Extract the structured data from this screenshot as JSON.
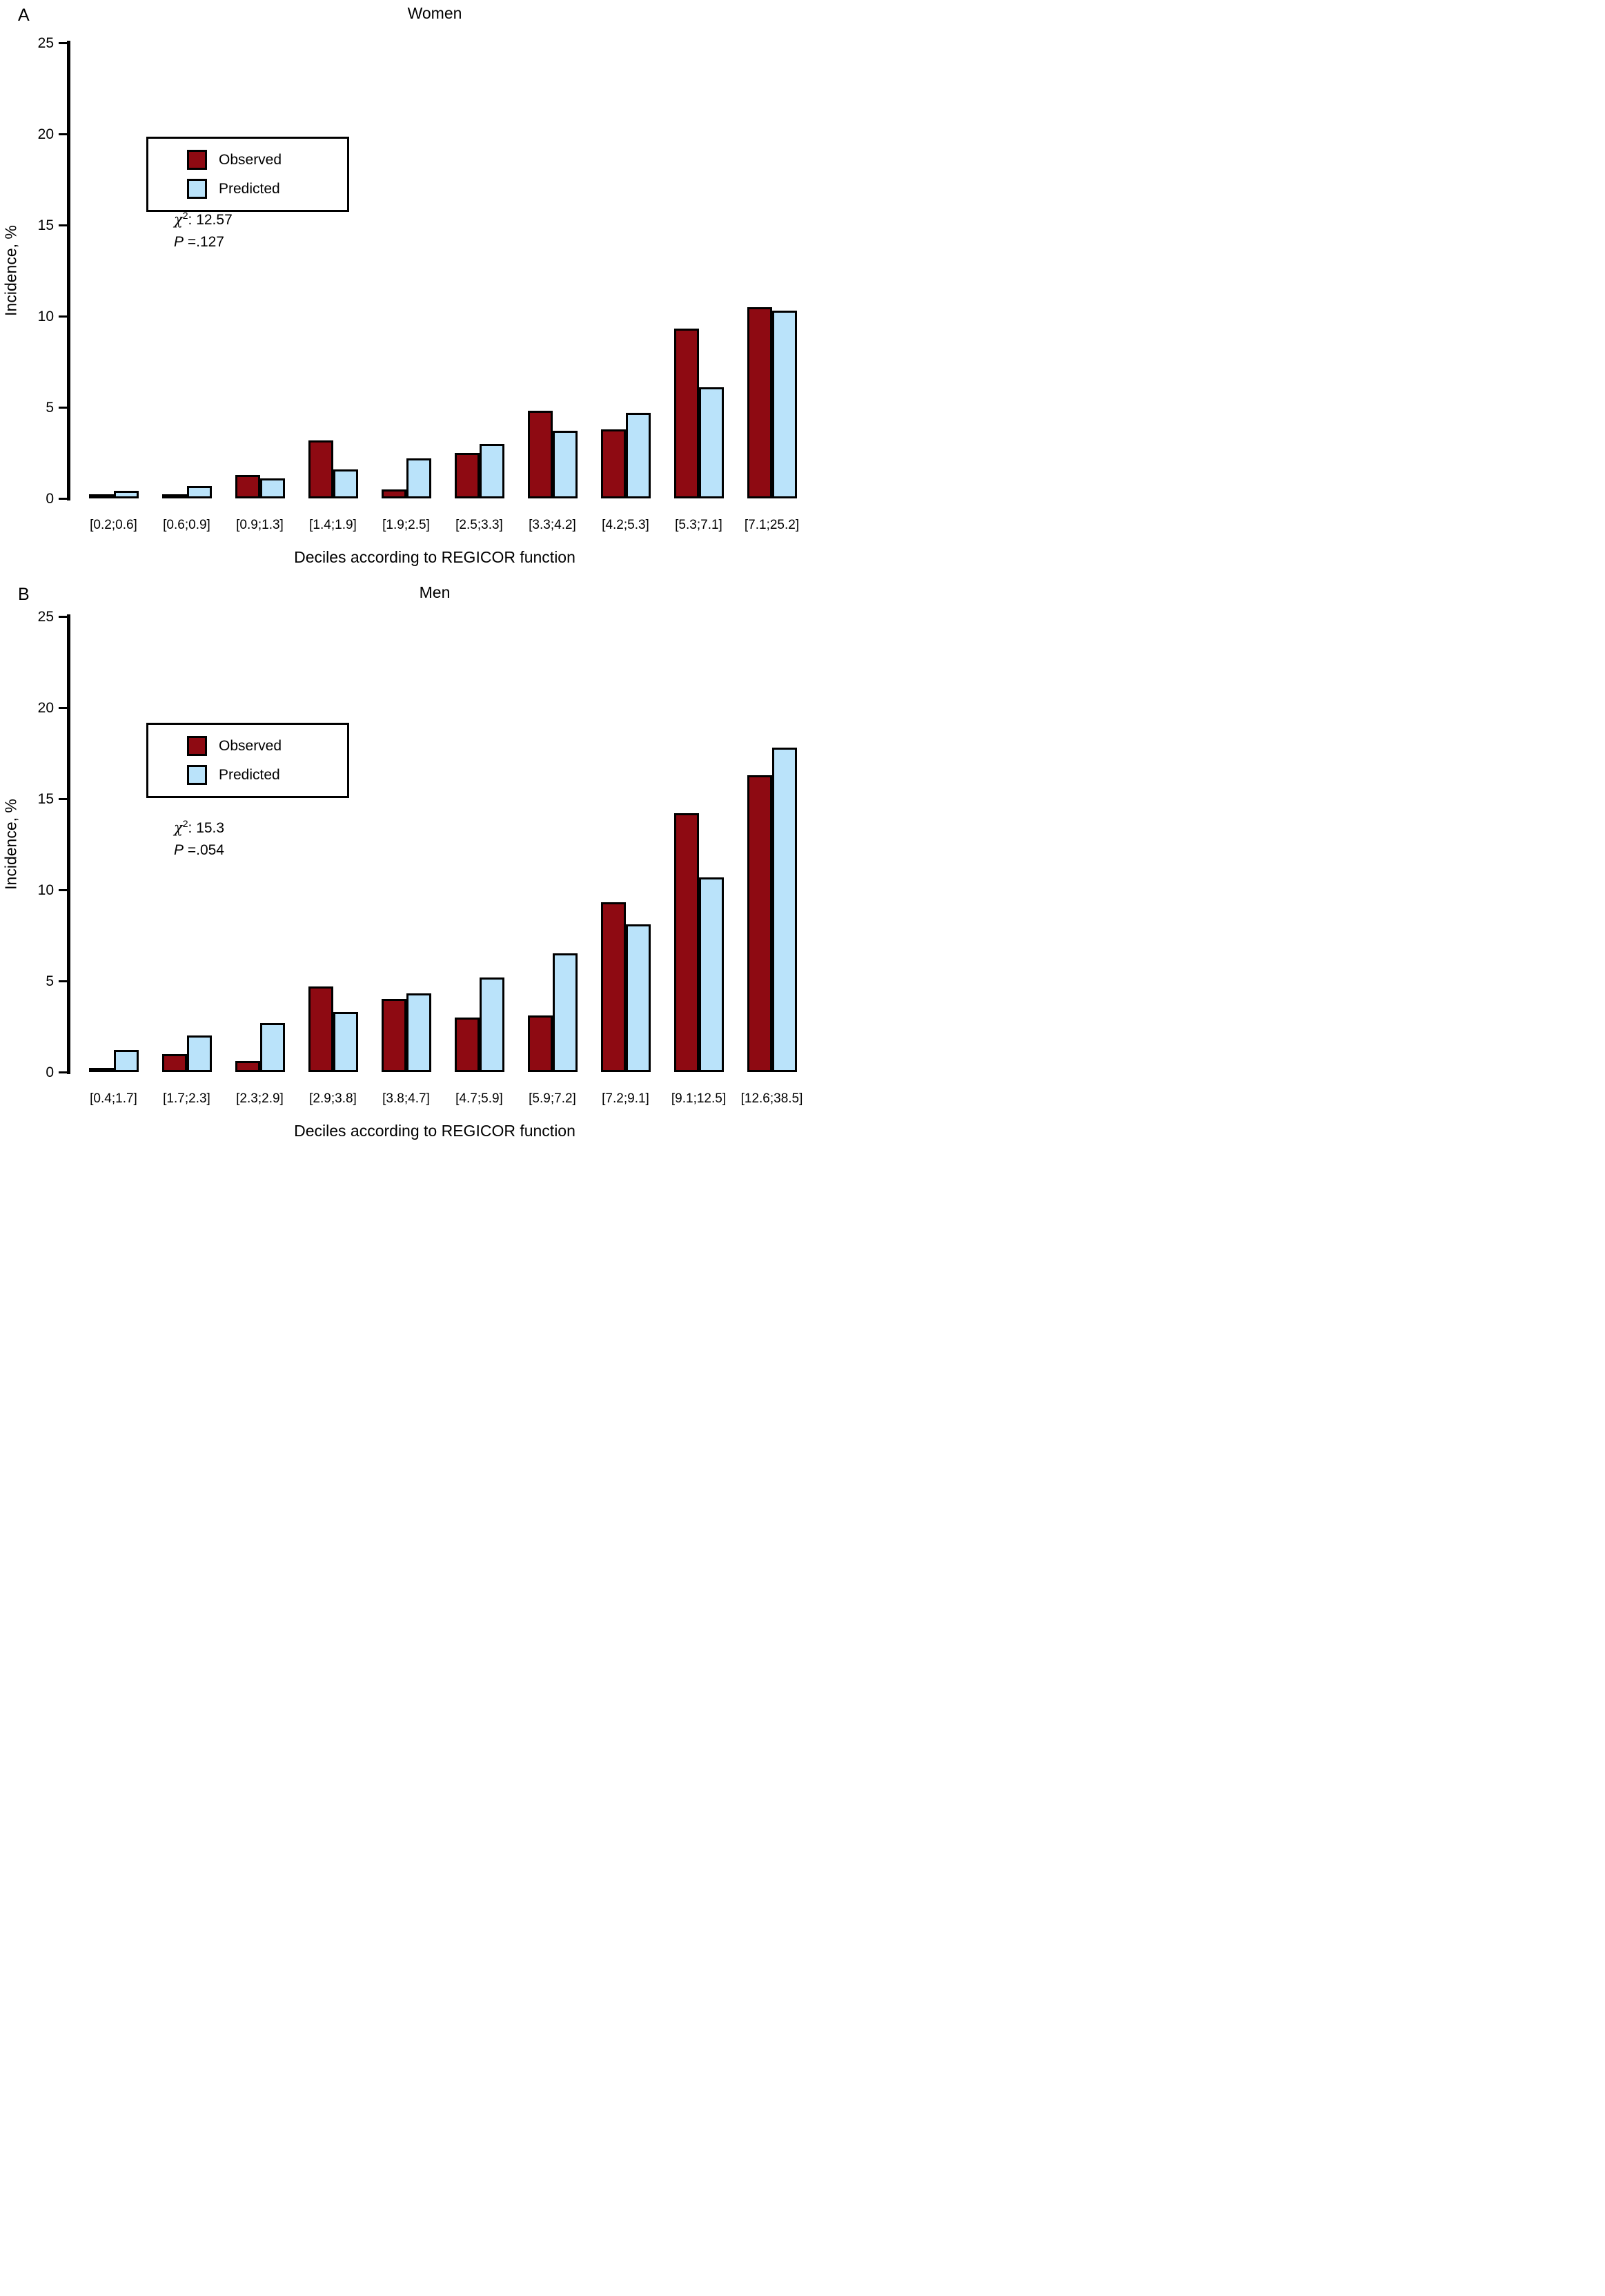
{
  "figure": {
    "y_axis_label": "Incidence, %",
    "x_axis_label": "Deciles according to REGICOR function"
  },
  "chart_data": [
    {
      "type": "bar",
      "panel": "A",
      "title": "Women",
      "xlabel": "Deciles according to REGICOR function",
      "ylabel": "Incidence, %",
      "ylim": [
        0,
        25
      ],
      "yticks": [
        0,
        5,
        10,
        15,
        20,
        25
      ],
      "grid": false,
      "legend_position": "upper-left-inside",
      "stats": {
        "chi": "χ",
        "chi_sup": "2",
        "chi_rest": ": 12.57",
        "p": "P",
        "p_rest": " =.127"
      },
      "legend": [
        {
          "label": "Observed",
          "color": "#8E0A12"
        },
        {
          "label": "Predicted",
          "color": "#BAE3FA"
        }
      ],
      "categories": [
        "[0.2;0.6]",
        "[0.6;0.9]",
        "[0.9;1.3]",
        "[1.4;1.9]",
        "[1.9;2.5]",
        "[2.5;3.3]",
        "[3.3;4.2]",
        "[4.2;5.3]",
        "[5.3;7.1]",
        "[7.1;25.2]"
      ],
      "series": [
        {
          "name": "Observed",
          "color": "#8E0A12",
          "values": [
            0.1,
            0.1,
            1.3,
            3.2,
            0.5,
            2.5,
            4.8,
            3.8,
            9.3,
            10.5
          ]
        },
        {
          "name": "Predicted",
          "color": "#BAE3FA",
          "values": [
            0.4,
            0.7,
            1.1,
            1.6,
            2.2,
            3.0,
            3.7,
            4.7,
            6.1,
            10.3
          ]
        }
      ]
    },
    {
      "type": "bar",
      "panel": "B",
      "title": "Men",
      "xlabel": "Deciles according to REGICOR function",
      "ylabel": "Incidence, %",
      "ylim": [
        0,
        25
      ],
      "yticks": [
        0,
        5,
        10,
        15,
        20,
        25
      ],
      "grid": false,
      "legend_position": "upper-left-inside",
      "stats": {
        "chi": "χ",
        "chi_sup": "2",
        "chi_rest": ": 15.3",
        "p": "P",
        "p_rest": " =.054"
      },
      "legend": [
        {
          "label": "Observed",
          "color": "#8E0A12"
        },
        {
          "label": "Predicted",
          "color": "#BAE3FA"
        }
      ],
      "categories": [
        "[0.4;1.7]",
        "[1.7;2.3]",
        "[2.3;2.9]",
        "[2.9;3.8]",
        "[3.8;4.7]",
        "[4.7;5.9]",
        "[5.9;7.2]",
        "[7.2;9.1]",
        "[9.1;12.5]",
        "[12.6;38.5]"
      ],
      "series": [
        {
          "name": "Observed",
          "color": "#8E0A12",
          "values": [
            0.1,
            1.0,
            0.6,
            4.7,
            4.0,
            3.0,
            3.1,
            9.3,
            14.2,
            16.3
          ]
        },
        {
          "name": "Predicted",
          "color": "#BAE3FA",
          "values": [
            1.2,
            2.0,
            2.7,
            3.3,
            4.3,
            5.2,
            6.5,
            8.1,
            10.7,
            17.8
          ]
        }
      ]
    }
  ]
}
